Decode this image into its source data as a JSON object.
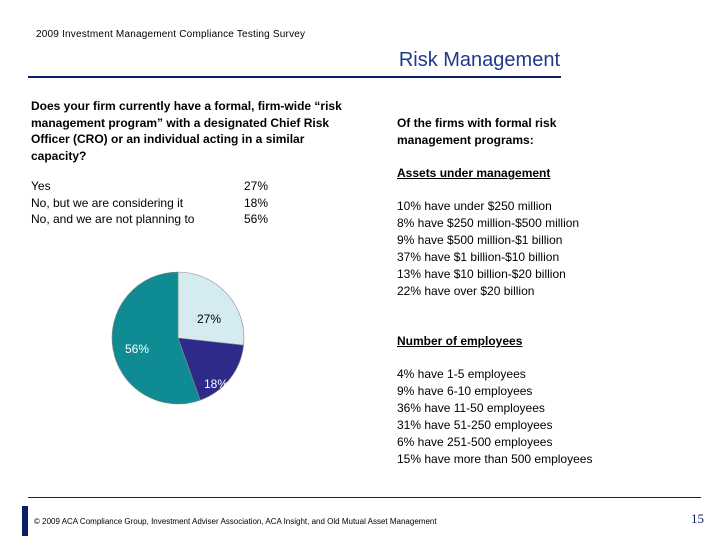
{
  "header": {
    "survey_title": "2009 Investment Management Compliance Testing Survey",
    "slide_title": "Risk Management"
  },
  "question": {
    "text": "Does your firm currently have a formal, firm-wide “risk management program” with a designated Chief Risk Officer (CRO) or an individual acting in a similar capacity?",
    "answers": [
      {
        "label": "Yes",
        "value": "27%"
      },
      {
        "label": "No, but we are considering it",
        "value": "18%"
      },
      {
        "label": "No, and we are not planning to",
        "value": "56%"
      }
    ]
  },
  "chart_data": {
    "type": "pie",
    "slices": [
      {
        "label": "27%",
        "value": 27,
        "color": "#d4ecef"
      },
      {
        "label": "18%",
        "value": 18,
        "color": "#2e2a8a"
      },
      {
        "label": "56%",
        "value": 56,
        "color": "#0f8c93"
      }
    ]
  },
  "right": {
    "heading": "Of the firms with formal risk management programs:",
    "aum": {
      "title": "Assets under management",
      "items": [
        "10% have under $250 million",
        "8%   have $250 million-$500 million",
        "9%   have $500 million-$1 billion",
        "37%  have $1 billion-$10 billion",
        "13% have $10 billion-$20 billion",
        "22% have over $20 billion"
      ]
    },
    "employees": {
      "title": "Number of employees",
      "items": [
        "4%   have 1-5 employees",
        "9%   have 6-10 employees",
        "36% have 11-50 employees",
        "31% have 51-250 employees",
        "6%   have 251-500 employees",
        "15% have more than 500 employees"
      ]
    }
  },
  "footer": {
    "text": "© 2009 ACA Compliance Group, Investment Adviser Association, ACA Insight, and Old Mutual Asset Management",
    "page_number": "15"
  }
}
